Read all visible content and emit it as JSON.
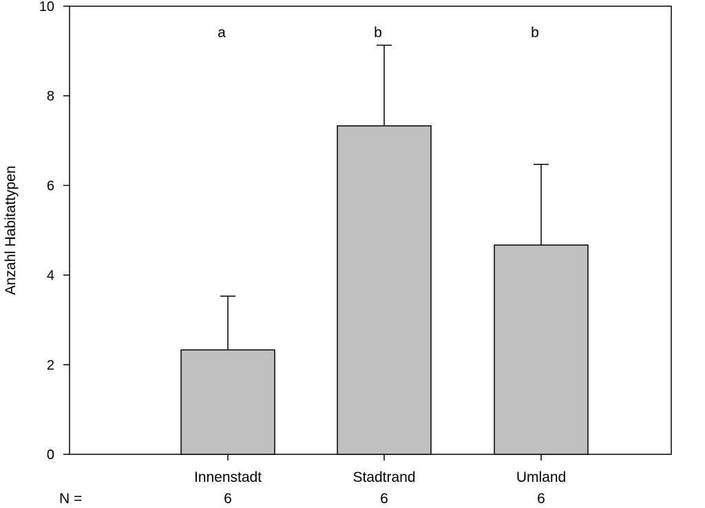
{
  "chart_data": {
    "type": "bar",
    "title": "",
    "xlabel": "",
    "ylabel": "Anzahl Habitattypen",
    "ylim": [
      0,
      10
    ],
    "yticks": [
      0,
      2,
      4,
      6,
      8,
      10
    ],
    "categories": [
      "Innenstadt",
      "Stadtrand",
      "Umland"
    ],
    "values": [
      2.33,
      7.33,
      4.67
    ],
    "error_upper": [
      1.2,
      1.8,
      1.8
    ],
    "significance_letters": [
      "a",
      "b",
      "b"
    ],
    "n_label": "N =",
    "n_values": [
      "6",
      "6",
      "6"
    ],
    "grid": false,
    "bar_color": "#c0c0c0",
    "edge_color": "#000000"
  }
}
